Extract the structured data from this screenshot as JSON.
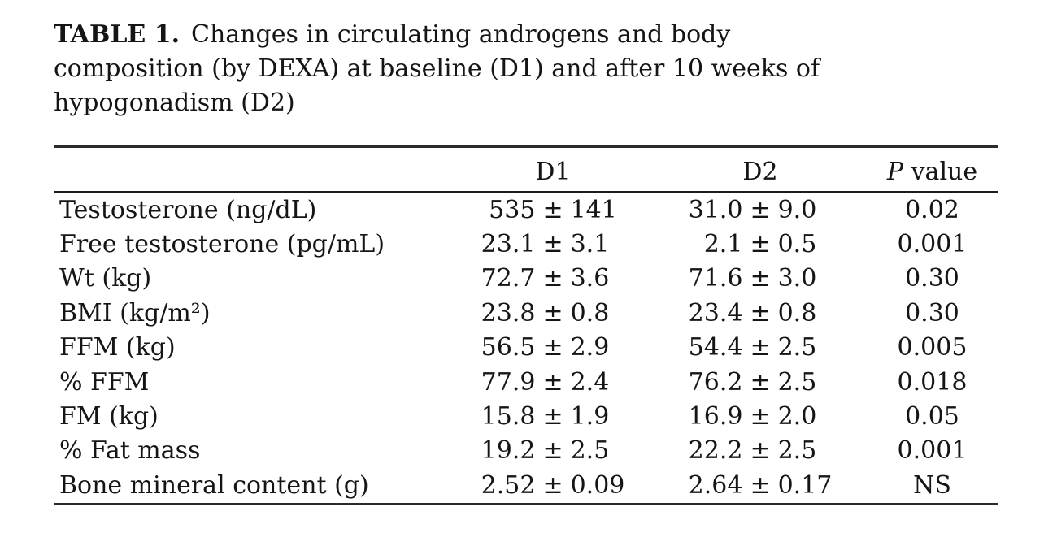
{
  "caption": {
    "label": "TABLE 1.",
    "lines": [
      "Changes in circulating androgens and body",
      "composition (by DEXA) at baseline (D1) and after 10 weeks of",
      "hypogonadism (D2)"
    ]
  },
  "symbols": {
    "pm": "±"
  },
  "table": {
    "header": {
      "d1": "D1",
      "d2": "D2",
      "p_italic": "P",
      "p_rest": "value"
    },
    "rows": [
      {
        "label": "Testosterone (ng/dL)",
        "d1_value": "535",
        "d1_sd": "141",
        "d2_value": "31.0",
        "d2_sd": "9.0",
        "p_value": "0.02"
      },
      {
        "label": "Free testosterone (pg/mL)",
        "d1_value": "23.1",
        "d1_sd": "3.1",
        "d2_value": "2.1",
        "d2_sd": "0.5",
        "p_value": "0.001"
      },
      {
        "label": "Wt (kg)",
        "d1_value": "72.7",
        "d1_sd": "3.6",
        "d2_value": "71.6",
        "d2_sd": "3.0",
        "p_value": "0.30"
      },
      {
        "label": "BMI (kg/m²)",
        "d1_value": "23.8",
        "d1_sd": "0.8",
        "d2_value": "23.4",
        "d2_sd": "0.8",
        "p_value": "0.30"
      },
      {
        "label": "FFM (kg)",
        "d1_value": "56.5",
        "d1_sd": "2.9",
        "d2_value": "54.4",
        "d2_sd": "2.5",
        "p_value": "0.005"
      },
      {
        "label": "% FFM",
        "d1_value": "77.9",
        "d1_sd": "2.4",
        "d2_value": "76.2",
        "d2_sd": "2.5",
        "p_value": "0.018"
      },
      {
        "label": "FM (kg)",
        "d1_value": "15.8",
        "d1_sd": "1.9",
        "d2_value": "16.9",
        "d2_sd": "2.0",
        "p_value": "0.05"
      },
      {
        "label": "% Fat mass",
        "d1_value": "19.2",
        "d1_sd": "2.5",
        "d2_value": "22.2",
        "d2_sd": "2.5",
        "p_value": "0.001"
      },
      {
        "label": "Bone mineral content (g)",
        "d1_value": "2.52",
        "d1_sd": "0.09",
        "d2_value": "2.64",
        "d2_sd": "0.17",
        "p_value": "NS"
      }
    ]
  }
}
